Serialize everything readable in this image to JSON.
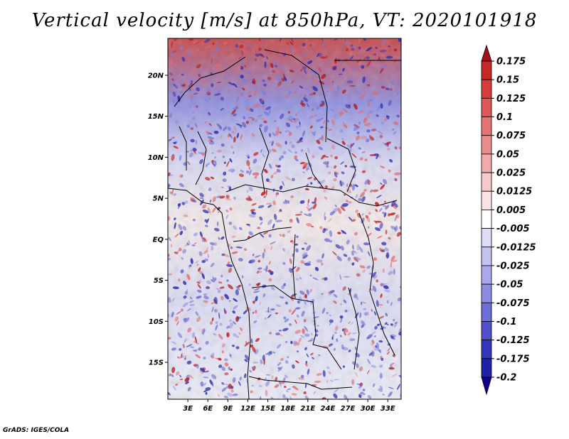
{
  "title": "Vertical velocity [m/s] at 850hPa, VT: 2020101918",
  "credit": "GrADS: IGES/COLA",
  "map": {
    "lon_range": [
      0,
      35
    ],
    "lat_range": [
      -19.5,
      24.5
    ],
    "lon_ticks": [
      "3E",
      "6E",
      "9E",
      "12E",
      "15E",
      "18E",
      "21E",
      "24E",
      "27E",
      "30E",
      "33E"
    ],
    "lat_ticks": [
      "20N",
      "15N",
      "10N",
      "5N",
      "EQ",
      "5S",
      "10S",
      "15S"
    ]
  },
  "colorbar": {
    "labels": [
      "0.175",
      "0.15",
      "0.125",
      "0.1",
      "0.075",
      "0.05",
      "0.025",
      "0.0125",
      "0.005",
      "-0.005",
      "-0.0125",
      "-0.025",
      "-0.05",
      "-0.075",
      "-0.1",
      "-0.125",
      "-0.175",
      "-0.2"
    ],
    "colors": [
      "#a50f15",
      "#c62828",
      "#d93a3a",
      "#e05555",
      "#e57373",
      "#ea8d8d",
      "#f0aaaa",
      "#f6caca",
      "#fbe4e4",
      "#ffffff",
      "#dcdcf5",
      "#c3c3f0",
      "#a8a8ea",
      "#8c8ce2",
      "#6e6ed8",
      "#5050cc",
      "#3535bb",
      "#2020a8",
      "#100090"
    ]
  }
}
